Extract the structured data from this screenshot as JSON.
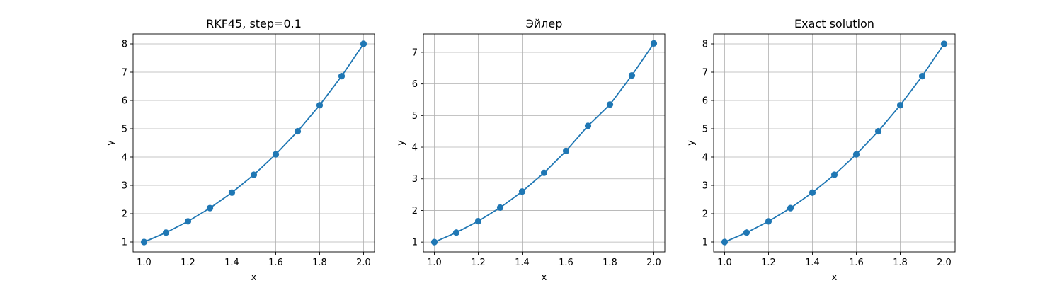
{
  "chart_data": [
    {
      "type": "line",
      "title": "RKF45, step=0.1",
      "xlabel": "x",
      "ylabel": "y",
      "xlim": [
        0.95,
        2.05
      ],
      "ylim": [
        0.65,
        8.35
      ],
      "xticks": [
        1.0,
        1.2,
        1.4,
        1.6,
        1.8,
        2.0
      ],
      "xtick_labels": [
        "1.0",
        "1.2",
        "1.4",
        "1.6",
        "1.8",
        "2.0"
      ],
      "yticks": [
        1,
        2,
        3,
        4,
        5,
        6,
        7,
        8
      ],
      "ytick_labels": [
        "1",
        "2",
        "3",
        "4",
        "5",
        "6",
        "7",
        "8"
      ],
      "grid": true,
      "color": "#1f77b4",
      "series": [
        {
          "x": [
            1.0,
            1.1,
            1.2,
            1.3,
            1.4,
            1.5,
            1.6,
            1.7,
            1.8,
            1.9,
            2.0
          ],
          "y": [
            1.0,
            1.331,
            1.728,
            2.197,
            2.744,
            3.375,
            4.096,
            4.913,
            5.832,
            6.859,
            8.0
          ]
        }
      ]
    },
    {
      "type": "line",
      "title": "Эйлер",
      "xlabel": "x",
      "ylabel": "y",
      "xlim": [
        0.95,
        2.05
      ],
      "ylim": [
        0.69,
        7.58
      ],
      "xticks": [
        1.0,
        1.2,
        1.4,
        1.6,
        1.8,
        2.0
      ],
      "xtick_labels": [
        "1.0",
        "1.2",
        "1.4",
        "1.6",
        "1.8",
        "2.0"
      ],
      "yticks": [
        1,
        2,
        3,
        4,
        5,
        6,
        7
      ],
      "ytick_labels": [
        "1",
        "2",
        "3",
        "4",
        "5",
        "6",
        "7"
      ],
      "grid": true,
      "color": "#1f77b4",
      "series": [
        {
          "x": [
            1.0,
            1.1,
            1.2,
            1.3,
            1.4,
            1.5,
            1.6,
            1.7,
            1.8,
            1.9,
            2.0
          ],
          "y": [
            1.0,
            1.3,
            1.661,
            2.09,
            2.597,
            3.191,
            3.88,
            4.676,
            5.349,
            6.27,
            7.28
          ]
        }
      ]
    },
    {
      "type": "line",
      "title": "Exact solution",
      "xlabel": "x",
      "ylabel": "y",
      "xlim": [
        0.95,
        2.05
      ],
      "ylim": [
        0.65,
        8.35
      ],
      "xticks": [
        1.0,
        1.2,
        1.4,
        1.6,
        1.8,
        2.0
      ],
      "xtick_labels": [
        "1.0",
        "1.2",
        "1.4",
        "1.6",
        "1.8",
        "2.0"
      ],
      "yticks": [
        1,
        2,
        3,
        4,
        5,
        6,
        7,
        8
      ],
      "ytick_labels": [
        "1",
        "2",
        "3",
        "4",
        "5",
        "6",
        "7",
        "8"
      ],
      "grid": true,
      "color": "#1f77b4",
      "series": [
        {
          "x": [
            1.0,
            1.1,
            1.2,
            1.3,
            1.4,
            1.5,
            1.6,
            1.7,
            1.8,
            1.9,
            2.0
          ],
          "y": [
            1.0,
            1.331,
            1.728,
            2.197,
            2.744,
            3.375,
            4.096,
            4.913,
            5.832,
            6.859,
            8.0
          ]
        }
      ]
    }
  ]
}
